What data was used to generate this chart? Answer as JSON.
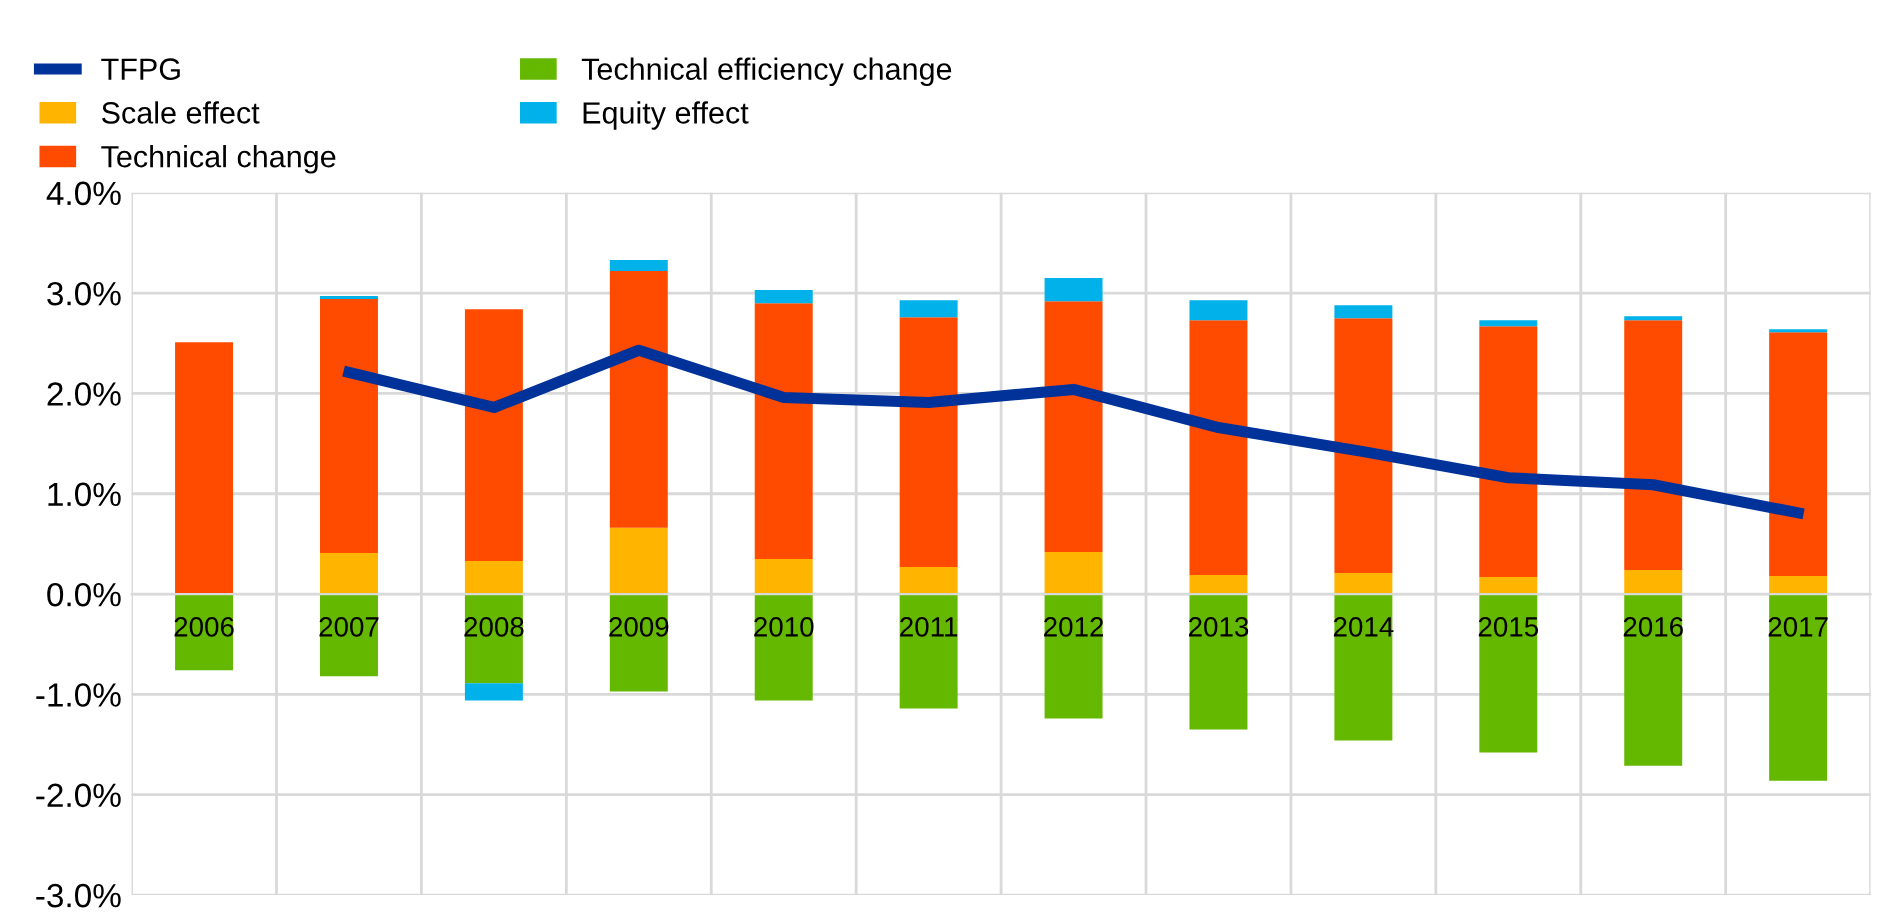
{
  "chart_data": {
    "type": "bar",
    "stacked": true,
    "categories": [
      "2006",
      "2007",
      "2008",
      "2009",
      "2010",
      "2011",
      "2012",
      "2013",
      "2014",
      "2015",
      "2016",
      "2017"
    ],
    "series": [
      {
        "name": "TFPG",
        "type": "line",
        "color": "#003299",
        "values": [
          null,
          2.21,
          1.86,
          2.43,
          1.96,
          1.91,
          2.04,
          1.66,
          1.42,
          1.16,
          1.09,
          0.81
        ]
      },
      {
        "name": "Scale effect",
        "color": "#ffb400",
        "values": [
          0,
          0.41,
          0.33,
          0.66,
          0.35,
          0.27,
          0.42,
          0.19,
          0.21,
          0.17,
          0.24,
          0.18
        ]
      },
      {
        "name": "Technical change",
        "color": "#ff4b00",
        "values": [
          2.51,
          2.53,
          2.51,
          2.56,
          2.55,
          2.49,
          2.5,
          2.54,
          2.54,
          2.5,
          2.49,
          2.43
        ]
      },
      {
        "name": "Technical efficiency change",
        "color": "#65b800",
        "values": [
          -0.76,
          -0.82,
          -0.89,
          -0.97,
          -1.06,
          -1.14,
          -1.24,
          -1.35,
          -1.46,
          -1.58,
          -1.71,
          -1.86
        ]
      },
      {
        "name": "Equity effect",
        "color": "#00b1ea",
        "values": [
          0,
          0.03,
          -0.17,
          0.11,
          0.13,
          0.17,
          0.23,
          0.2,
          0.13,
          0.06,
          0.04,
          0.03
        ]
      }
    ],
    "ylim": [
      -3,
      4
    ],
    "yticks": [
      {
        "value": -3,
        "label": "-3.0%"
      },
      {
        "value": -2,
        "label": "-2.0%"
      },
      {
        "value": -1,
        "label": "-1.0%"
      },
      {
        "value": 0,
        "label": "0.0%"
      },
      {
        "value": 1,
        "label": "1.0%"
      },
      {
        "value": 2,
        "label": "2.0%"
      },
      {
        "value": 3,
        "label": "3.0%"
      },
      {
        "value": 4,
        "label": "4.0%"
      }
    ],
    "grid": true,
    "legend": "top left",
    "marker": "none",
    "line_style": "solid"
  }
}
